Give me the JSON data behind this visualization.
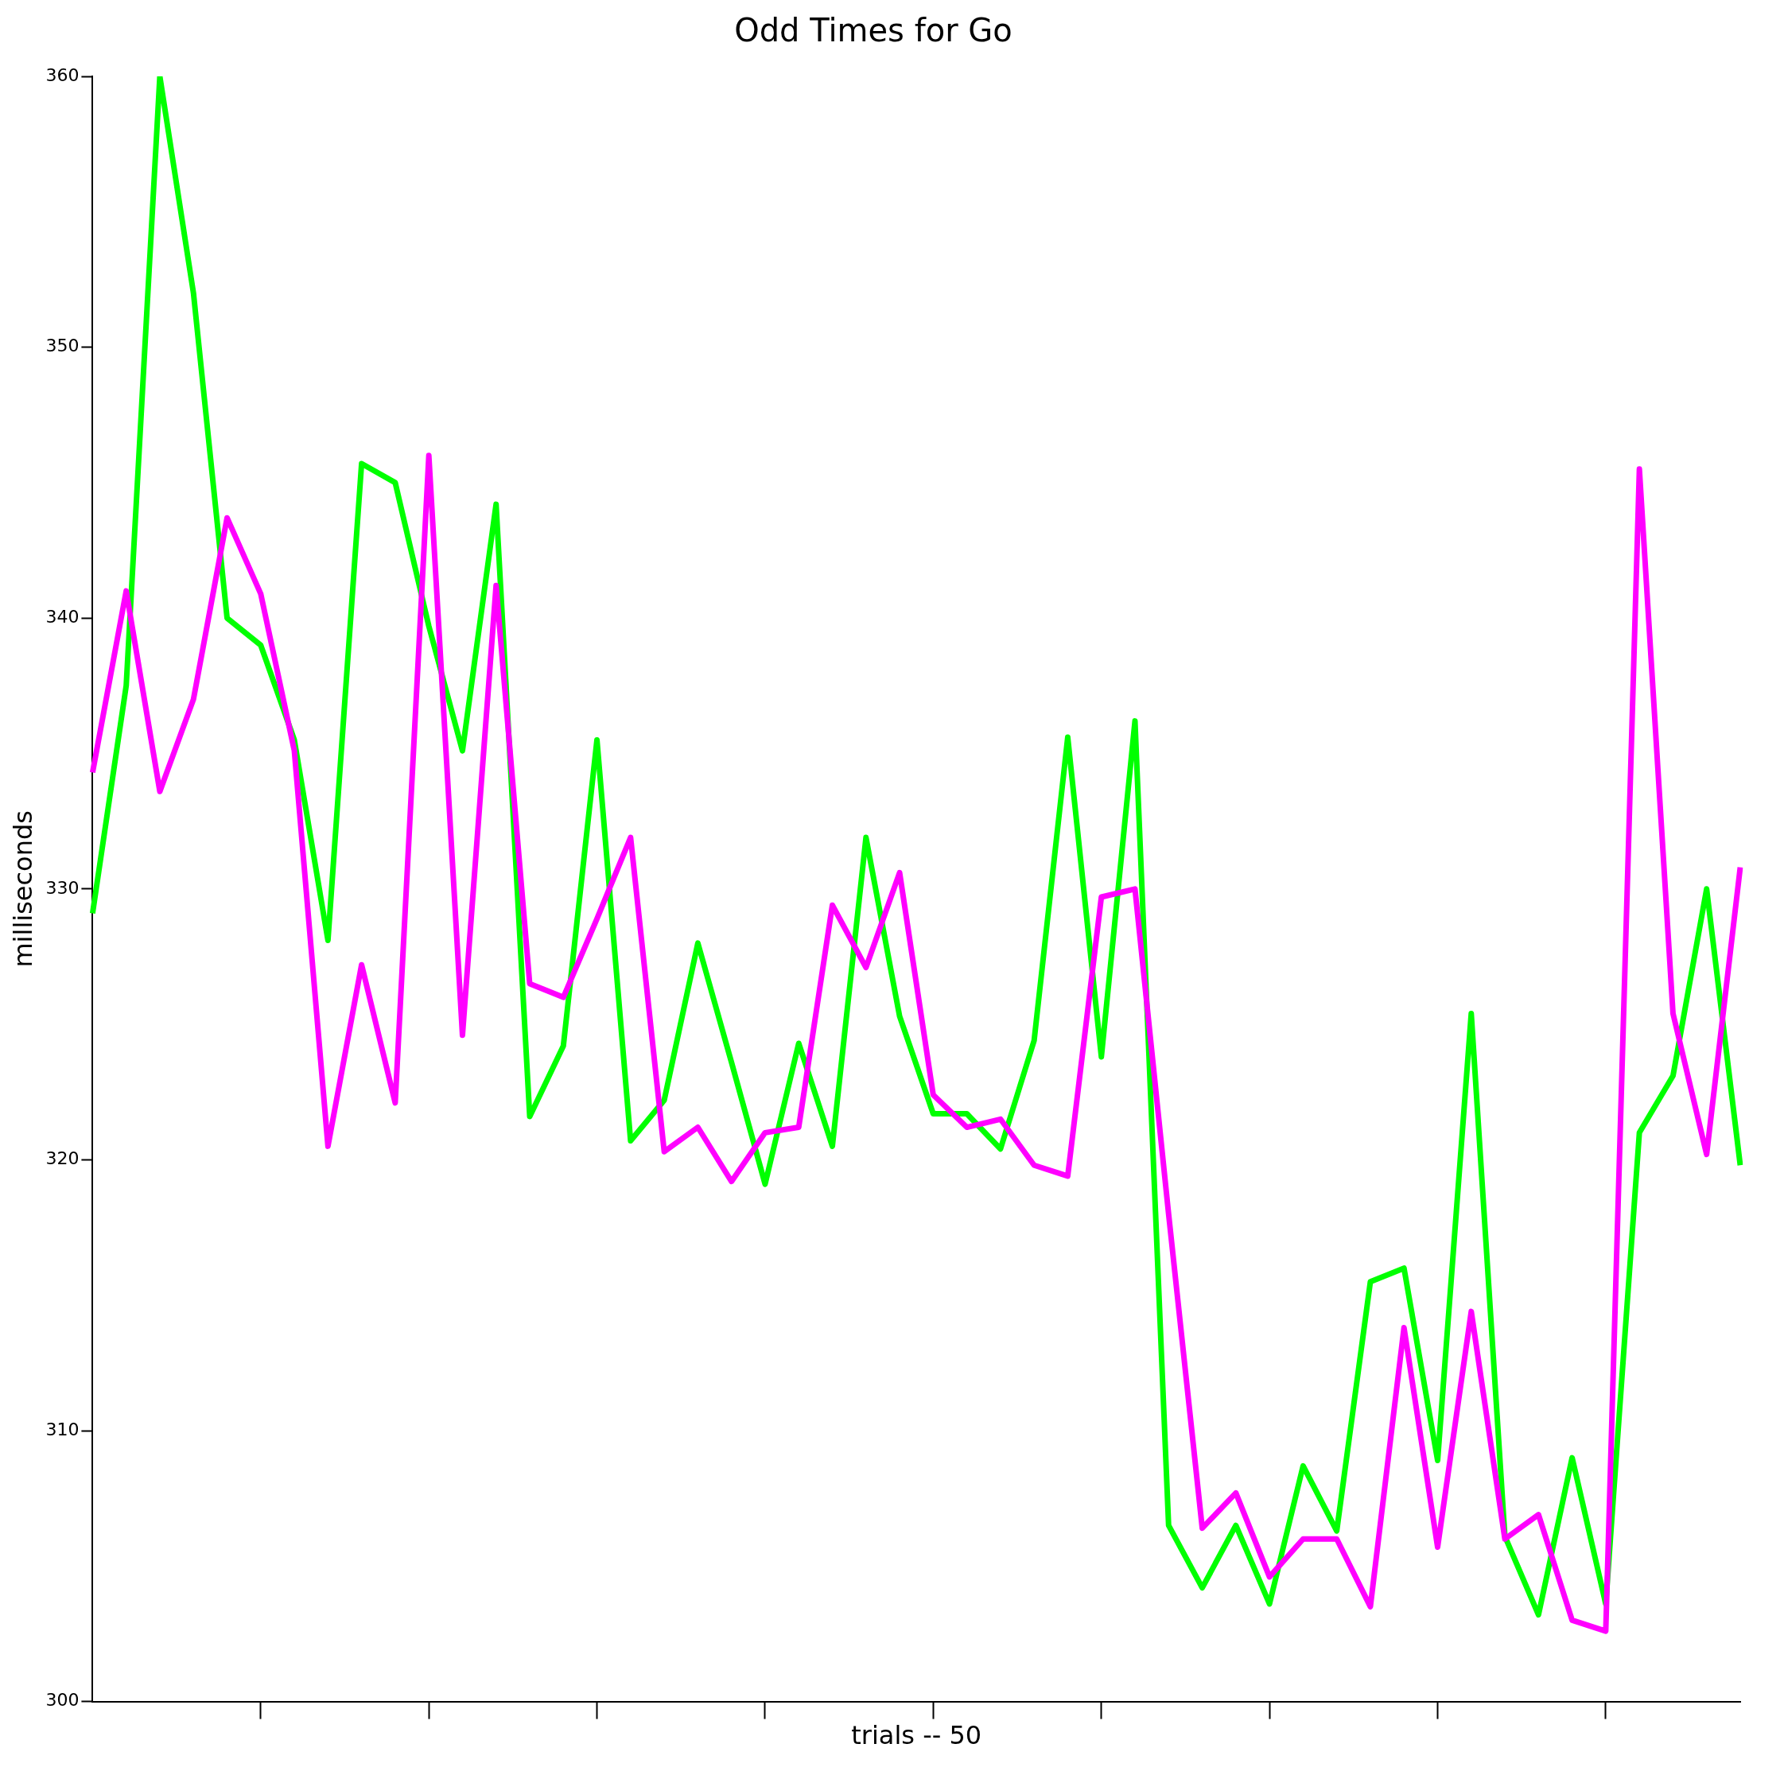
{
  "chart_data": {
    "type": "line",
    "title": "Odd Times for Go",
    "xlabel": "trials -- 50",
    "ylabel": "milliseconds",
    "categories": [
      null,
      null,
      null,
      null,
      null,
      null,
      null,
      null,
      null,
      null,
      null,
      null,
      null,
      null,
      null,
      null,
      null,
      null,
      null,
      null,
      null,
      null,
      null,
      null,
      null,
      null,
      null,
      null,
      null,
      null,
      null,
      null,
      null,
      null,
      null,
      null,
      null,
      null,
      null,
      null,
      null,
      null,
      null,
      null,
      null,
      null,
      null,
      null,
      null,
      null
    ],
    "series": [
      {
        "color": "#ff00ff",
        "values": [
          334.3,
          341.0,
          333.6,
          337.0,
          343.7,
          340.9,
          335.1,
          320.5,
          327.2,
          322.1,
          346.0,
          324.6,
          341.2,
          326.5,
          326.0,
          328.9,
          331.9,
          320.3,
          321.2,
          319.2,
          321.0,
          321.2,
          329.4,
          327.1,
          330.6,
          322.4,
          321.2,
          321.5,
          319.8,
          319.4,
          329.7,
          330.0,
          318.0,
          306.4,
          307.7,
          304.6,
          306.0,
          306.0,
          303.5,
          313.8,
          305.7,
          314.4,
          306.0,
          306.9,
          303.0,
          302.6,
          345.5,
          325.4,
          320.2,
          330.8
        ]
      },
      {
        "color": "#00ff00",
        "values": [
          329.1,
          337.5,
          360.0,
          352.0,
          340.0,
          339.0,
          335.5,
          328.1,
          345.7,
          345.0,
          339.7,
          335.1,
          344.2,
          321.6,
          324.2,
          335.5,
          320.7,
          322.2,
          328.0,
          323.6,
          319.1,
          324.3,
          320.5,
          331.9,
          325.3,
          321.7,
          321.7,
          320.4,
          324.4,
          335.6,
          323.8,
          336.2,
          306.5,
          304.2,
          306.5,
          303.6,
          308.7,
          306.3,
          315.5,
          316.0,
          308.9,
          325.4,
          306.1,
          303.2,
          309.0,
          303.6,
          321.0,
          323.1,
          330.0,
          319.8
        ]
      }
    ],
    "ylim": [
      300,
      360
    ],
    "yticks": [
      300,
      310,
      320,
      330,
      340,
      350,
      360
    ],
    "grid": false,
    "legend": false,
    "tick_labels": "y",
    "line_style": "solid",
    "marker": "none"
  }
}
